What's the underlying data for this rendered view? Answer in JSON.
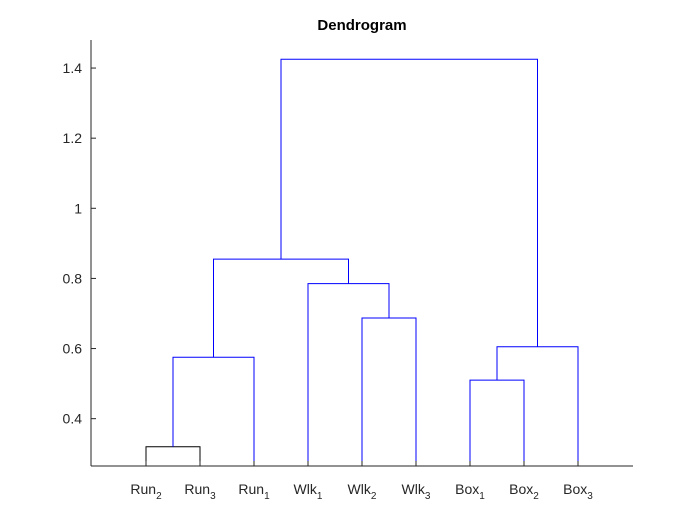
{
  "chart_data": {
    "type": "dendrogram",
    "title": "Dendrogram",
    "xlabel": "",
    "ylabel": "",
    "ylim": [
      0.265,
      1.48
    ],
    "yticks": [
      0.4,
      0.6,
      0.8,
      1.0,
      1.2,
      1.4
    ],
    "ytick_labels": [
      "0.4",
      "0.6",
      "0.8",
      "1",
      "1.2",
      "1.4"
    ],
    "leaves": [
      {
        "base": "Run",
        "sub": "2"
      },
      {
        "base": "Run",
        "sub": "3"
      },
      {
        "base": "Run",
        "sub": "1"
      },
      {
        "base": "Wlk",
        "sub": "1"
      },
      {
        "base": "Wlk",
        "sub": "2"
      },
      {
        "base": "Wlk",
        "sub": "3"
      },
      {
        "base": "Box",
        "sub": "1"
      },
      {
        "base": "Box",
        "sub": "2"
      },
      {
        "base": "Box",
        "sub": "3"
      }
    ],
    "merges": [
      {
        "left": 0,
        "right": 1,
        "height": 0.32,
        "color": "#000000"
      },
      {
        "left": 9,
        "right": 2,
        "height": 0.575,
        "color": "#0000ff"
      },
      {
        "left": 4,
        "right": 5,
        "height": 0.687,
        "color": "#0000ff"
      },
      {
        "left": 3,
        "right": 11,
        "height": 0.785,
        "color": "#0000ff"
      },
      {
        "left": 10,
        "right": 12,
        "height": 0.855,
        "color": "#0000ff"
      },
      {
        "left": 6,
        "right": 7,
        "height": 0.51,
        "color": "#0000ff"
      },
      {
        "left": 14,
        "right": 8,
        "height": 0.605,
        "color": "#0000ff"
      },
      {
        "left": 13,
        "right": 15,
        "height": 1.425,
        "color": "#0000ff"
      }
    ],
    "grid": false
  }
}
